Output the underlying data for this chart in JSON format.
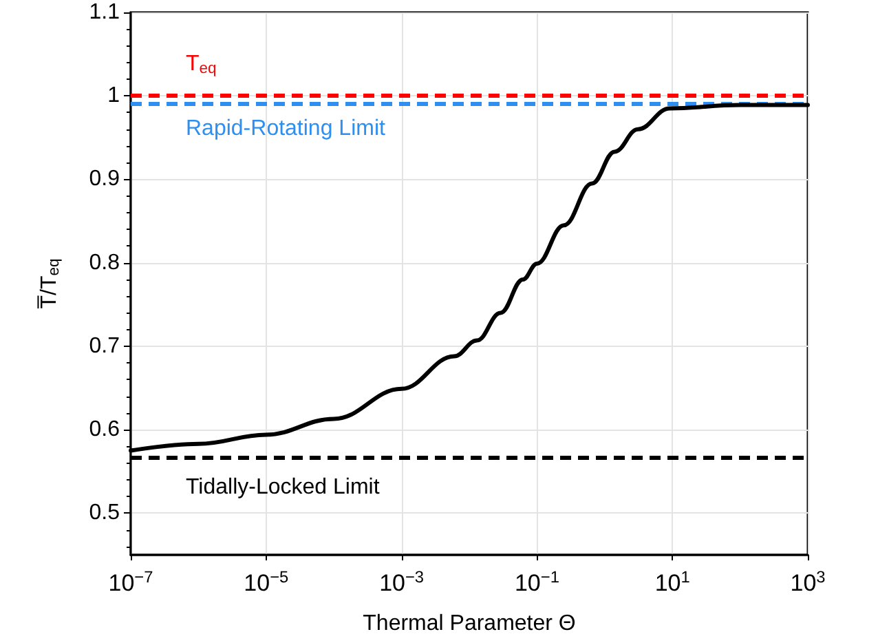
{
  "chart_data": {
    "type": "line",
    "xlabel": "Thermal Parameter Θ",
    "ylabel": "T̅/T$_{eq}$",
    "log": "x",
    "x": [
      1e-07,
      1e-06,
      1e-05,
      0.0001,
      0.001,
      0.006,
      0.013,
      0.029,
      0.062,
      0.1,
      0.25,
      0.65,
      1.4,
      3.1,
      9.1,
      100,
      1000
    ],
    "series": [
      {
        "color": "#000000",
        "values": [
          0.575,
          0.583,
          0.594,
          0.613,
          0.649,
          0.688,
          0.707,
          0.74,
          0.78,
          0.799,
          0.845,
          0.895,
          0.933,
          0.96,
          0.985,
          0.989,
          0.989
        ]
      }
    ],
    "xlim": [
      1e-07,
      1000
    ],
    "xticks": [
      {
        "value": 1e-07,
        "label": "10$^{−7}$"
      },
      {
        "value": 1e-05,
        "label": "10$^{−5}$"
      },
      {
        "value": 0.001,
        "label": "10$^{−3}$"
      },
      {
        "value": 0.1,
        "label": "10$^{−1}$"
      },
      {
        "value": 10,
        "label": "10$^{1}$"
      },
      {
        "value": 1000,
        "label": "10$^{3}$"
      }
    ],
    "ylim": [
      0.45,
      1.1
    ],
    "yticks": [
      0.5,
      0.6,
      0.7,
      0.8,
      0.9,
      1,
      1.1
    ],
    "grid": true,
    "marker": "none",
    "line_style": "solid",
    "ref_lines": [
      {
        "axis": "y",
        "value": 1,
        "label": "T$_{eq}$",
        "color": "#ff0000",
        "line_style": "dashed"
      },
      {
        "axis": "y",
        "value": 0.99,
        "label": "Rapid-Rotating Limit",
        "color": "#2f8ff0",
        "line_style": "dashed"
      },
      {
        "axis": "y",
        "value": 0.567,
        "label": "Tidally-Locked Limit",
        "color": "#000000",
        "line_style": "dashed"
      }
    ]
  }
}
